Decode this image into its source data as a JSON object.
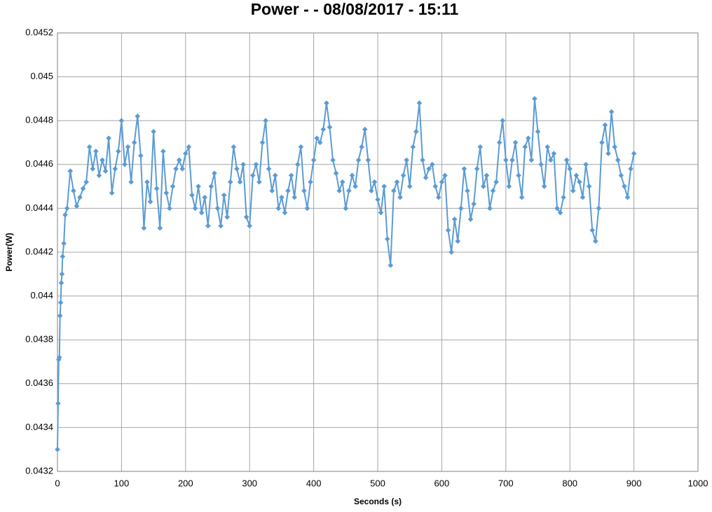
{
  "chart_data": {
    "type": "scatter-line",
    "title": "Power -  - 08/08/2017 - 15:11",
    "x_label": "Seconds (s)",
    "y_label": "Power(W)",
    "color": "#5b9bd5",
    "grid": true,
    "xlim": [
      0,
      1000
    ],
    "xticks": [
      0,
      100,
      200,
      300,
      400,
      500,
      600,
      700,
      800,
      900,
      1000
    ],
    "ylim": [
      0.0432,
      0.0452
    ],
    "yticks": [
      0.0432,
      0.0434,
      0.0436,
      0.0438,
      0.044,
      0.0442,
      0.0444,
      0.0446,
      0.0448,
      0.045,
      0.0452
    ],
    "x": [
      0,
      1,
      2,
      3,
      4,
      5,
      6,
      7,
      8,
      10,
      12,
      15,
      20,
      25,
      30,
      35,
      40,
      45,
      50,
      55,
      60,
      65,
      70,
      75,
      80,
      85,
      90,
      95,
      100,
      105,
      110,
      115,
      120,
      125,
      130,
      135,
      140,
      145,
      150,
      155,
      160,
      165,
      170,
      175,
      180,
      185,
      190,
      195,
      200,
      205,
      210,
      215,
      220,
      225,
      230,
      235,
      240,
      245,
      250,
      255,
      260,
      265,
      270,
      275,
      280,
      285,
      290,
      295,
      300,
      305,
      310,
      315,
      320,
      325,
      330,
      335,
      340,
      345,
      350,
      355,
      360,
      365,
      370,
      375,
      380,
      385,
      390,
      395,
      400,
      405,
      410,
      415,
      420,
      425,
      430,
      435,
      440,
      445,
      450,
      455,
      460,
      465,
      470,
      475,
      480,
      485,
      490,
      495,
      500,
      505,
      510,
      515,
      520,
      525,
      530,
      535,
      540,
      545,
      550,
      555,
      560,
      565,
      570,
      575,
      580,
      585,
      590,
      595,
      600,
      605,
      610,
      615,
      620,
      625,
      630,
      635,
      640,
      645,
      650,
      655,
      660,
      665,
      670,
      675,
      680,
      685,
      690,
      695,
      700,
      705,
      710,
      715,
      720,
      725,
      730,
      735,
      740,
      745,
      750,
      755,
      760,
      765,
      770,
      775,
      780,
      785,
      790,
      795,
      800,
      805,
      810,
      815,
      820,
      825,
      830,
      835,
      840,
      845,
      850,
      855,
      860,
      865,
      870,
      875,
      880,
      885,
      890,
      895,
      900
    ],
    "values": [
      0.0433,
      0.04351,
      0.04371,
      0.04372,
      0.04391,
      0.04397,
      0.04406,
      0.0441,
      0.04418,
      0.04424,
      0.04437,
      0.0444,
      0.04457,
      0.04448,
      0.04441,
      0.04445,
      0.04449,
      0.04452,
      0.04468,
      0.04458,
      0.04466,
      0.04455,
      0.04462,
      0.04457,
      0.04472,
      0.04447,
      0.04458,
      0.04466,
      0.0448,
      0.0446,
      0.04468,
      0.04452,
      0.0447,
      0.04482,
      0.04464,
      0.04431,
      0.04452,
      0.04443,
      0.04475,
      0.04449,
      0.04431,
      0.04466,
      0.04447,
      0.0444,
      0.0445,
      0.04458,
      0.04462,
      0.04458,
      0.04465,
      0.04468,
      0.04446,
      0.0444,
      0.0445,
      0.04438,
      0.04445,
      0.04432,
      0.0445,
      0.04456,
      0.0444,
      0.04432,
      0.04446,
      0.04436,
      0.04452,
      0.04468,
      0.04458,
      0.04452,
      0.0446,
      0.04436,
      0.04432,
      0.04455,
      0.0446,
      0.04452,
      0.0447,
      0.0448,
      0.04458,
      0.04448,
      0.04455,
      0.0444,
      0.04445,
      0.04438,
      0.04448,
      0.04455,
      0.04445,
      0.0446,
      0.04468,
      0.04448,
      0.0444,
      0.04452,
      0.04462,
      0.04472,
      0.0447,
      0.04476,
      0.04488,
      0.04477,
      0.04462,
      0.04456,
      0.04448,
      0.04452,
      0.0444,
      0.04448,
      0.04455,
      0.0445,
      0.04462,
      0.04468,
      0.04476,
      0.04462,
      0.04448,
      0.04452,
      0.04444,
      0.04438,
      0.0445,
      0.04426,
      0.04414,
      0.04448,
      0.04452,
      0.04445,
      0.04455,
      0.04462,
      0.0445,
      0.04468,
      0.04475,
      0.04488,
      0.04462,
      0.04454,
      0.04458,
      0.0446,
      0.0445,
      0.04445,
      0.04452,
      0.04455,
      0.0443,
      0.0442,
      0.04435,
      0.04425,
      0.0444,
      0.04458,
      0.04448,
      0.04435,
      0.04442,
      0.04458,
      0.04468,
      0.0445,
      0.04455,
      0.0444,
      0.04448,
      0.04452,
      0.0447,
      0.0448,
      0.04462,
      0.0445,
      0.04462,
      0.0447,
      0.04455,
      0.04445,
      0.04468,
      0.04472,
      0.04462,
      0.0449,
      0.04475,
      0.0446,
      0.0445,
      0.04468,
      0.04462,
      0.04465,
      0.0444,
      0.04438,
      0.04445,
      0.04462,
      0.04458,
      0.04448,
      0.04455,
      0.04452,
      0.04445,
      0.0446,
      0.0445,
      0.0443,
      0.04425,
      0.0444,
      0.0447,
      0.04478,
      0.04465,
      0.04484,
      0.04468,
      0.04462,
      0.04455,
      0.0445,
      0.04445,
      0.04458,
      0.04465
    ]
  }
}
